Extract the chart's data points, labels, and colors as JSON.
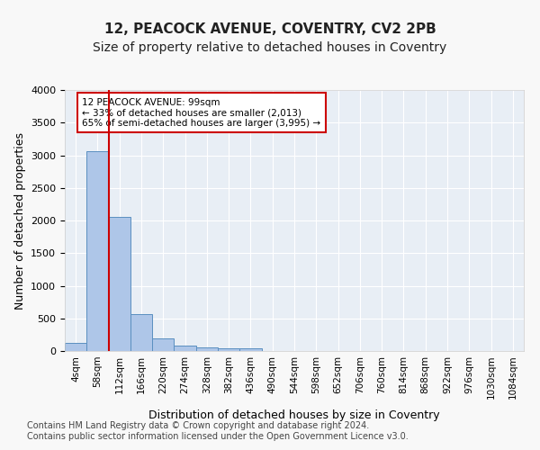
{
  "title": "12, PEACOCK AVENUE, COVENTRY, CV2 2PB",
  "subtitle": "Size of property relative to detached houses in Coventry",
  "xlabel": "Distribution of detached houses by size in Coventry",
  "ylabel": "Number of detached properties",
  "bar_values": [
    130,
    3060,
    2060,
    560,
    200,
    80,
    55,
    40,
    40,
    0,
    0,
    0,
    0,
    0,
    0,
    0,
    0,
    0,
    0,
    0,
    0
  ],
  "bar_labels": [
    "4sqm",
    "58sqm",
    "112sqm",
    "166sqm",
    "220sqm",
    "274sqm",
    "328sqm",
    "382sqm",
    "436sqm",
    "490sqm",
    "544sqm",
    "598sqm",
    "652sqm",
    "706sqm",
    "760sqm",
    "814sqm",
    "868sqm",
    "922sqm",
    "976sqm",
    "1030sqm",
    "1084sqm"
  ],
  "bar_color": "#aec6e8",
  "bar_edge_color": "#5a8fc0",
  "background_color": "#e8eef5",
  "grid_color": "#ffffff",
  "vline_color": "#cc0000",
  "ylim": [
    0,
    4000
  ],
  "yticks": [
    0,
    500,
    1000,
    1500,
    2000,
    2500,
    3000,
    3500,
    4000
  ],
  "annotation_text": "12 PEACOCK AVENUE: 99sqm\n← 33% of detached houses are smaller (2,013)\n65% of semi-detached houses are larger (3,995) →",
  "annotation_box_color": "#ffffff",
  "annotation_box_edge": "#cc0000",
  "footer_line1": "Contains HM Land Registry data © Crown copyright and database right 2024.",
  "footer_line2": "Contains public sector information licensed under the Open Government Licence v3.0.",
  "title_fontsize": 11,
  "subtitle_fontsize": 10,
  "axis_fontsize": 9,
  "tick_fontsize": 8,
  "footer_fontsize": 7
}
